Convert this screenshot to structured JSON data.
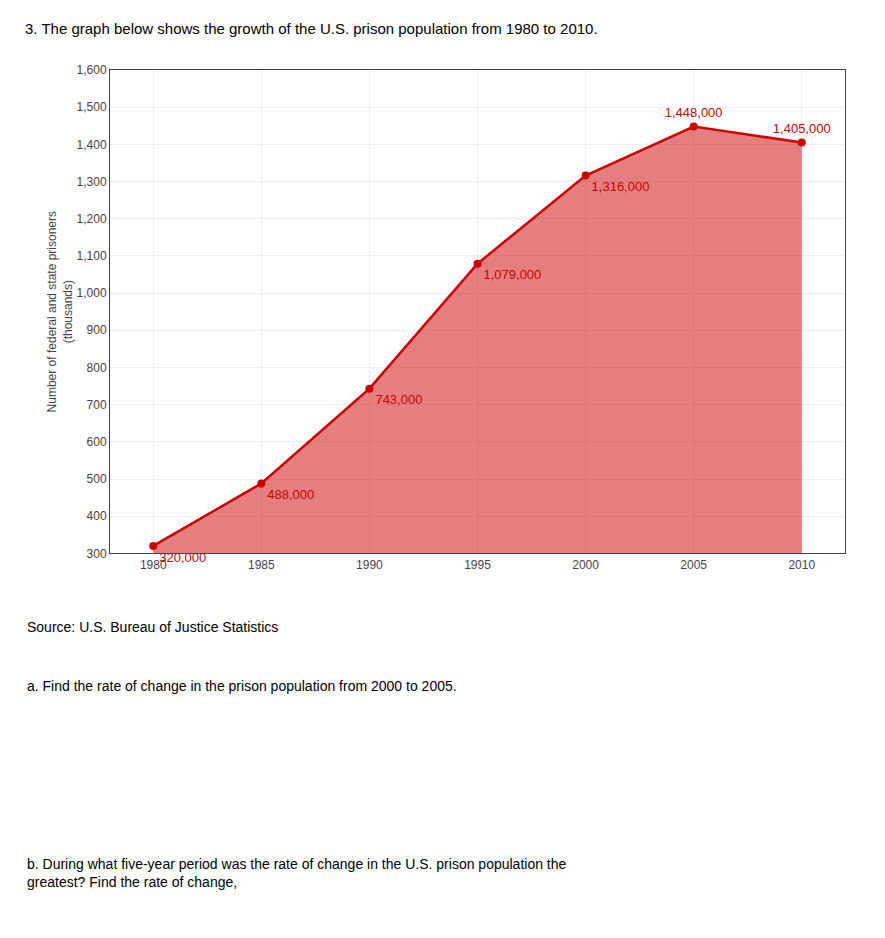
{
  "chart_data": {
    "type": "area",
    "title": "3. The graph below shows the growth of the U.S. prison population from 1980 to 2010.",
    "ylabel": "Number of federal and state prisoners\n(thousands)",
    "x": [
      1980,
      1985,
      1990,
      1995,
      2000,
      2005,
      2010
    ],
    "values": [
      320,
      488,
      743,
      1079,
      1316,
      1448,
      1405
    ],
    "value_labels": [
      "320,000",
      "488,000",
      "743,000",
      "1,079,000",
      "1,316,000",
      "1,448,000",
      "1,405,000"
    ],
    "data_labels": true,
    "color": "#cc0000",
    "marker": "circle",
    "xlim": [
      1978,
      2012
    ],
    "xticks": [
      1980,
      1985,
      1990,
      1995,
      2000,
      2005,
      2010
    ],
    "ylim": [
      300,
      1600
    ],
    "yticks": [
      300,
      400,
      500,
      600,
      700,
      800,
      900,
      {
        "value": 1000,
        "label": "1,000"
      },
      {
        "value": 1100,
        "label": "1,100"
      },
      {
        "value": 1200,
        "label": "1,200"
      },
      {
        "value": 1300,
        "label": "1,300"
      },
      {
        "value": 1400,
        "label": "1,400"
      },
      {
        "value": 1500,
        "label": "1,500"
      },
      {
        "value": 1600,
        "label": "1,600"
      }
    ],
    "grid": true,
    "annotations": [
      "Source: U.S. Bureau of Justice Statistics",
      "a. Find the rate of change in the prison population from 2000 to 2005.",
      "b. During what five-year period was the rate of change in the U.S. prison population the\ngreatest? Find the rate of change,"
    ]
  }
}
